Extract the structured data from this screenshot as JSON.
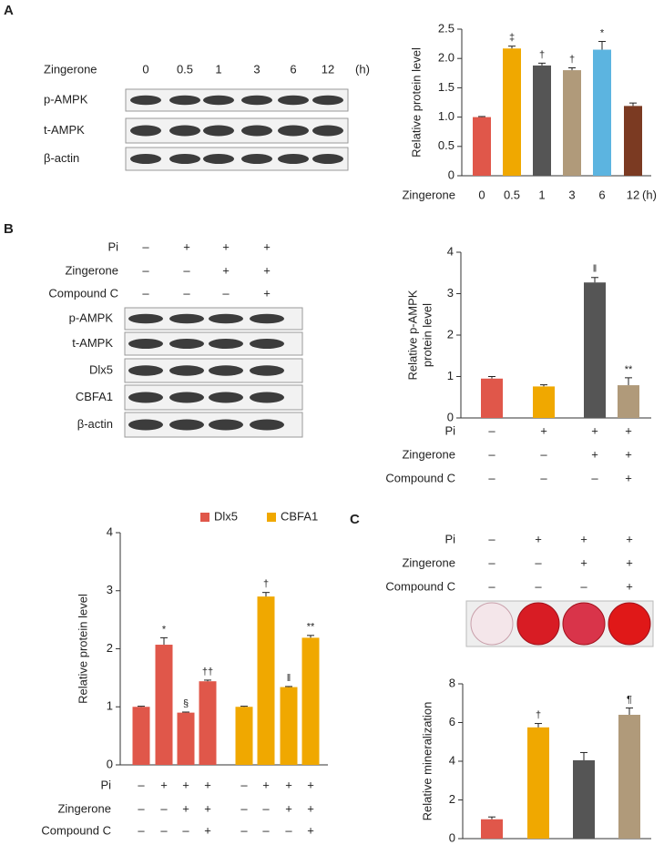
{
  "panel_labels": [
    "A",
    "B",
    "C"
  ],
  "blots": {
    "A": {
      "condition": "Zingerone",
      "lanes": [
        "0",
        "0.5",
        "1",
        "3",
        "6",
        "12"
      ],
      "unit": "(h)",
      "rows": [
        "p-AMPK",
        "t-AMPK",
        "β-actin"
      ]
    },
    "B": {
      "conditions": [
        {
          "name": "Pi",
          "signs": [
            "–",
            "+",
            "+",
            "+"
          ]
        },
        {
          "name": "Zingerone",
          "signs": [
            "–",
            "–",
            "+",
            "+"
          ]
        },
        {
          "name": "Compound C",
          "signs": [
            "–",
            "–",
            "–",
            "+"
          ]
        }
      ],
      "rows": [
        "p-AMPK",
        "t-AMPK",
        "Dlx5",
        "CBFA1",
        "β-actin"
      ]
    }
  },
  "chart_data": [
    {
      "type": "bar",
      "ylabel": [
        "Relative protein level"
      ],
      "xlabel": "Zingerone",
      "xunit": "(h)",
      "categories": [
        "0",
        "0.5",
        "1",
        "3",
        "6",
        "12"
      ],
      "values": [
        1.0,
        2.17,
        1.88,
        1.8,
        2.15,
        1.19
      ],
      "errors": [
        0.01,
        0.04,
        0.04,
        0.04,
        0.14,
        0.05
      ],
      "markers": [
        null,
        "‡",
        "†",
        "†",
        "*",
        null
      ],
      "colors": [
        "#e0574a",
        "#f0a800",
        "#555555",
        "#b09a7a",
        "#5cb4e0",
        "#7b3a22"
      ],
      "ylim": [
        0,
        2.5
      ],
      "yticks": [
        0,
        0.5,
        {
          "value": 1,
          "label": "1.0"
        },
        1.5,
        {
          "value": 2,
          "label": "2.0"
        },
        2.5
      ]
    },
    {
      "type": "bar",
      "ylabel": [
        "Relative p-AMPK",
        "protein level"
      ],
      "values": [
        0.95,
        0.76,
        3.27,
        0.79
      ],
      "errors": [
        0.05,
        0.04,
        0.12,
        0.18
      ],
      "markers": [
        null,
        null,
        "‖",
        "**"
      ],
      "colors": [
        "#e0574a",
        "#f0a800",
        "#555555",
        "#b09a7a"
      ],
      "ylim": [
        0,
        4
      ],
      "yticks": [
        0,
        1,
        2,
        3,
        4
      ],
      "conditions": [
        {
          "name": "Pi",
          "signs": [
            "–",
            "+",
            "+",
            "+"
          ]
        },
        {
          "name": "Zingerone",
          "signs": [
            "–",
            "–",
            "+",
            "+"
          ]
        },
        {
          "name": "Compound C",
          "signs": [
            "–",
            "–",
            "–",
            "+"
          ]
        }
      ]
    },
    {
      "type": "bar",
      "ylabel": [
        "Relative protein level"
      ],
      "series": [
        {
          "name": "Dlx5",
          "color": "#e0574a",
          "values": [
            1.0,
            2.07,
            0.9,
            1.44
          ],
          "errors": [
            0.01,
            0.12,
            0.01,
            0.02
          ],
          "markers": [
            null,
            "*",
            "§",
            "††"
          ]
        },
        {
          "name": "CBFA1",
          "color": "#f0a800",
          "values": [
            1.0,
            2.9,
            1.34,
            2.19
          ],
          "errors": [
            0.01,
            0.07,
            0.01,
            0.04
          ],
          "markers": [
            null,
            "†",
            "‖",
            "**"
          ]
        }
      ],
      "ylim": [
        0,
        4
      ],
      "yticks": [
        0,
        1,
        2,
        3,
        4
      ],
      "conditions": [
        {
          "name": "Pi",
          "signs": [
            "–",
            "+",
            "+",
            "+",
            "–",
            "+",
            "+",
            "+"
          ]
        },
        {
          "name": "Zingerone",
          "signs": [
            "–",
            "–",
            "+",
            "+",
            "–",
            "–",
            "+",
            "+"
          ]
        },
        {
          "name": "Compound C",
          "signs": [
            "–",
            "–",
            "–",
            "+",
            "–",
            "–",
            "–",
            "+"
          ]
        }
      ]
    },
    {
      "type": "bar",
      "ylabel": [
        "Relative mineralization"
      ],
      "values": [
        1.0,
        5.75,
        4.05,
        6.4
      ],
      "errors": [
        0.12,
        0.2,
        0.4,
        0.35
      ],
      "markers": [
        null,
        "†",
        null,
        "¶"
      ],
      "colors": [
        "#e0574a",
        "#f0a800",
        "#555555",
        "#b09a7a"
      ],
      "ylim": [
        0,
        8
      ],
      "yticks": [
        0,
        2,
        4,
        6,
        8
      ],
      "conditions": [
        {
          "name": "Pi",
          "signs": [
            "–",
            "+",
            "+",
            "+"
          ]
        },
        {
          "name": "Zingerone",
          "signs": [
            "–",
            "–",
            "+",
            "+"
          ]
        },
        {
          "name": "Compound C",
          "signs": [
            "–",
            "–",
            "–",
            "+"
          ]
        }
      ]
    }
  ]
}
